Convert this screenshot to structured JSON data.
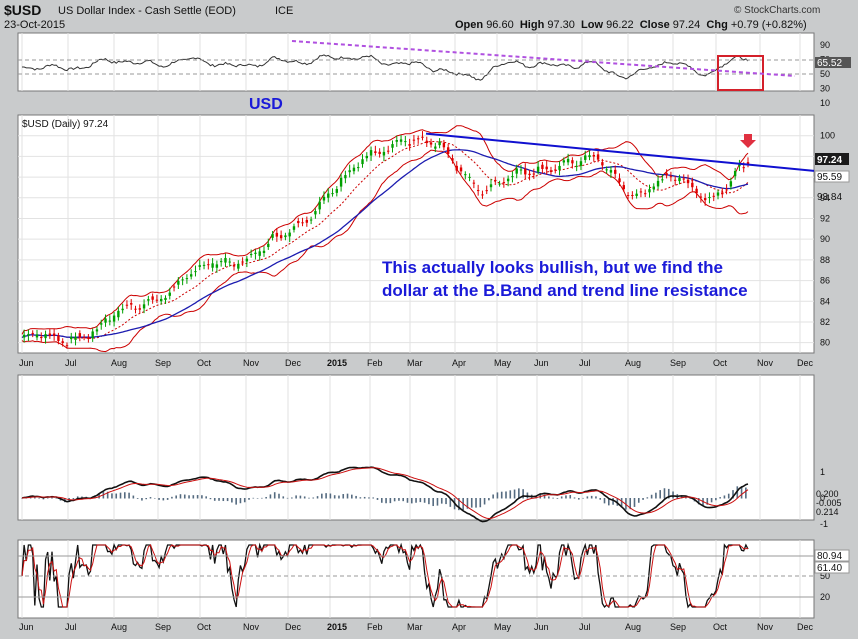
{
  "header": {
    "symbol": "$USD",
    "name": "US Dollar Index - Cash Settle (EOD)",
    "exchange": "ICE",
    "date": "23-Oct-2015",
    "open_label": "Open",
    "open": "96.60",
    "high_label": "High",
    "high": "97.30",
    "low_label": "Low",
    "low": "96.22",
    "close_label": "Close",
    "close": "97.24",
    "chg_label": "Chg",
    "chg": "+0.79 (+0.82%)",
    "watermark": "© StockCharts.com"
  },
  "main_panel": {
    "legend": "$USD (Daily) 97.24",
    "usd_label": "USD",
    "annotation_line1": "This actually looks bullish, but we find the",
    "annotation_line2": "dollar at the B.Band and trend line resistance",
    "last_value": "97.24",
    "band_upper_value": "95.59",
    "band_lower_value": "93.84"
  },
  "top_panel": {
    "value": "65.52",
    "ticks": [
      "90",
      "70",
      "50",
      "30",
      "10"
    ]
  },
  "macd_panel": {
    "ticks": [
      "1",
      "0",
      "-1"
    ],
    "value1": "0.200",
    "value2": "-0.005",
    "value3": "0.214"
  },
  "bottom_panel": {
    "ticks": [
      "80",
      "50",
      "20"
    ],
    "value1": "80.94",
    "value2": "61.40"
  },
  "months": [
    "Jun",
    "Jul",
    "Aug",
    "Sep",
    "Oct",
    "Nov",
    "Dec",
    "2015",
    "Feb",
    "Mar",
    "Apr",
    "May",
    "Jun",
    "Jul",
    "Aug",
    "Sep",
    "Oct",
    "Nov",
    "Dec"
  ],
  "colors": {
    "up": "#00a000",
    "down": "#e00000",
    "trend": "#1010d0",
    "band": "#cc0000",
    "ma": "#1c1cb0",
    "dashed_trend": "#b050e0",
    "annotation": "#1a1ad8"
  },
  "chart_data": {
    "type": "line",
    "title": "$USD US Dollar Index - Cash Settle (EOD)",
    "x": [
      "Jun 2014",
      "Jul 2014",
      "Aug 2014",
      "Sep 2014",
      "Oct 2014",
      "Nov 2014",
      "Dec 2014",
      "Jan 2015",
      "Feb 2015",
      "Mar 2015",
      "Mar 2015",
      "Apr 2015",
      "May 2015",
      "Jun 2015",
      "Jul 2015",
      "Aug 2015",
      "Aug 2015",
      "Sep 2015",
      "Oct 2015",
      "Oct 2015"
    ],
    "series": [
      {
        "name": "$USD",
        "values": [
          80.5,
          80.2,
          81.5,
          83.5,
          85.5,
          87.5,
          88.5,
          90.5,
          94.5,
          97.5,
          100.0,
          98.5,
          95.0,
          96.0,
          97.5,
          97.5,
          94.5,
          95.8,
          94.2,
          97.24
        ]
      }
    ],
    "ylim": [
      79,
      102
    ],
    "yticks": [
      80,
      82,
      84,
      86,
      88,
      90,
      92,
      94,
      96,
      98,
      100
    ],
    "grid": true
  }
}
